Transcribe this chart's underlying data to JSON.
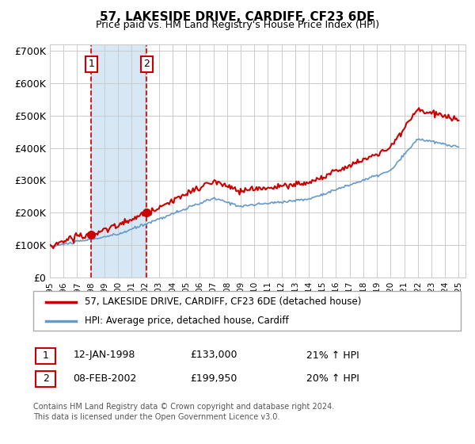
{
  "title": "57, LAKESIDE DRIVE, CARDIFF, CF23 6DE",
  "subtitle": "Price paid vs. HM Land Registry's House Price Index (HPI)",
  "xlim": [
    1995.0,
    2025.5
  ],
  "ylim": [
    0,
    720000
  ],
  "yticks": [
    0,
    100000,
    200000,
    300000,
    400000,
    500000,
    600000,
    700000
  ],
  "ytick_labels": [
    "£0",
    "£100K",
    "£200K",
    "£300K",
    "£400K",
    "£500K",
    "£600K",
    "£700K"
  ],
  "xtick_years": [
    1995,
    1996,
    1997,
    1998,
    1999,
    2000,
    2001,
    2002,
    2003,
    2004,
    2005,
    2006,
    2007,
    2008,
    2009,
    2010,
    2011,
    2012,
    2013,
    2014,
    2015,
    2016,
    2017,
    2018,
    2019,
    2020,
    2021,
    2022,
    2023,
    2024,
    2025
  ],
  "purchase1_x": 1998.04,
  "purchase1_y": 133000,
  "purchase2_x": 2002.1,
  "purchase2_y": 199950,
  "shading_xmin": 1998.04,
  "shading_xmax": 2002.1,
  "red_line_color": "#cc0000",
  "blue_line_color": "#6699cc",
  "shading_color": "#d6e8f5",
  "grid_color": "#cccccc",
  "background_color": "#ffffff",
  "legend_label_red": "57, LAKESIDE DRIVE, CARDIFF, CF23 6DE (detached house)",
  "legend_label_blue": "HPI: Average price, detached house, Cardiff",
  "table_row1": [
    "1",
    "12-JAN-1998",
    "£133,000",
    "21% ↑ HPI"
  ],
  "table_row2": [
    "2",
    "08-FEB-2002",
    "£199,950",
    "20% ↑ HPI"
  ],
  "footer1": "Contains HM Land Registry data © Crown copyright and database right 2024.",
  "footer2": "This data is licensed under the Open Government Licence v3.0."
}
